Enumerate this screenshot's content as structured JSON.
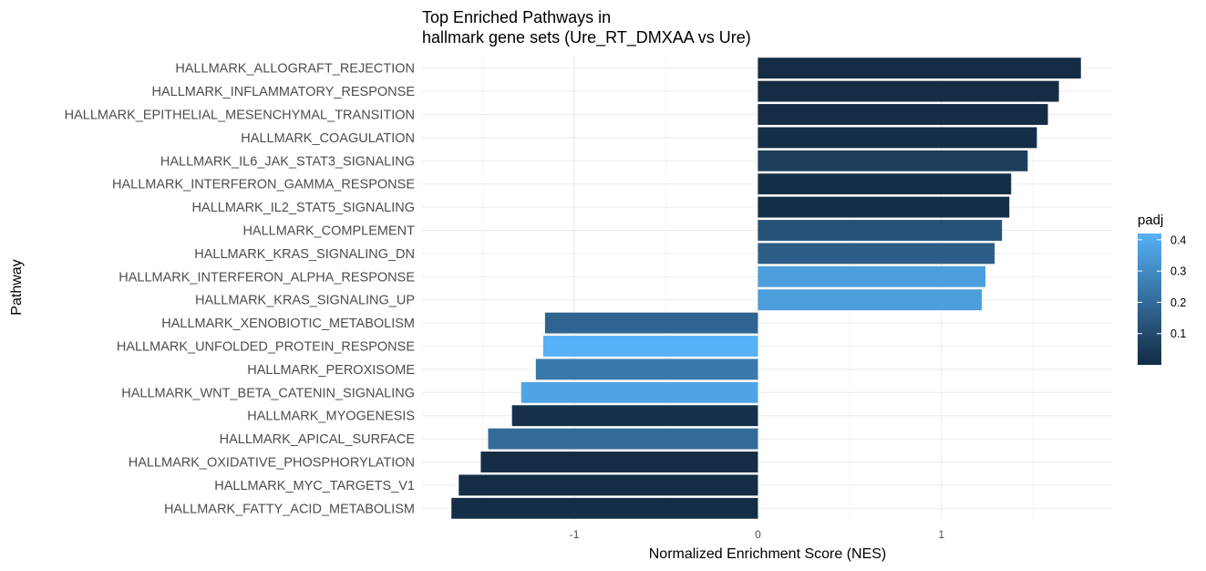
{
  "chart_data": {
    "type": "bar",
    "orientation": "horizontal",
    "title_lines": [
      "Top Enriched Pathways in",
      "hallmark gene sets (Ure_RT_DMXAA vs Ure)"
    ],
    "xlabel": "Normalized Enrichment Score (NES)",
    "ylabel": "Pathway",
    "xlim": [
      -1.83,
      1.93
    ],
    "x_ticks": [
      -1,
      0,
      1
    ],
    "x_tick_labels": [
      "-1",
      "0",
      "1"
    ],
    "grid": true,
    "legend": {
      "title": "padj",
      "position": "right",
      "ticks": [
        0.1,
        0.2,
        0.3,
        0.4
      ],
      "tick_labels": [
        "0.1",
        "0.2",
        "0.3",
        "0.4"
      ],
      "range": [
        0.0,
        0.42
      ],
      "color_low": "#132b43",
      "color_high": "#56b1f7"
    },
    "categories": [
      "HALLMARK_ALLOGRAFT_REJECTION",
      "HALLMARK_INFLAMMATORY_RESPONSE",
      "HALLMARK_EPITHELIAL_MESENCHYMAL_TRANSITION",
      "HALLMARK_COAGULATION",
      "HALLMARK_IL6_JAK_STAT3_SIGNALING",
      "HALLMARK_INTERFERON_GAMMA_RESPONSE",
      "HALLMARK_IL2_STAT5_SIGNALING",
      "HALLMARK_COMPLEMENT",
      "HALLMARK_KRAS_SIGNALING_DN",
      "HALLMARK_INTERFERON_ALPHA_RESPONSE",
      "HALLMARK_KRAS_SIGNALING_UP",
      "HALLMARK_XENOBIOTIC_METABOLISM",
      "HALLMARK_UNFOLDED_PROTEIN_RESPONSE",
      "HALLMARK_PEROXISOME",
      "HALLMARK_WNT_BETA_CATENIN_SIGNALING",
      "HALLMARK_MYOGENESIS",
      "HALLMARK_APICAL_SURFACE",
      "HALLMARK_OXIDATIVE_PHOSPHORYLATION",
      "HALLMARK_MYC_TARGETS_V1",
      "HALLMARK_FATTY_ACID_METABOLISM"
    ],
    "values": [
      1.76,
      1.64,
      1.58,
      1.52,
      1.47,
      1.38,
      1.37,
      1.33,
      1.29,
      1.24,
      1.22,
      -1.16,
      -1.17,
      -1.21,
      -1.29,
      -1.34,
      -1.47,
      -1.51,
      -1.63,
      -1.67
    ],
    "padj": [
      0.005,
      0.005,
      0.005,
      0.01,
      0.06,
      0.01,
      0.01,
      0.12,
      0.16,
      0.36,
      0.36,
      0.18,
      0.42,
      0.24,
      0.38,
      0.02,
      0.2,
      0.005,
      0.005,
      0.01
    ]
  }
}
